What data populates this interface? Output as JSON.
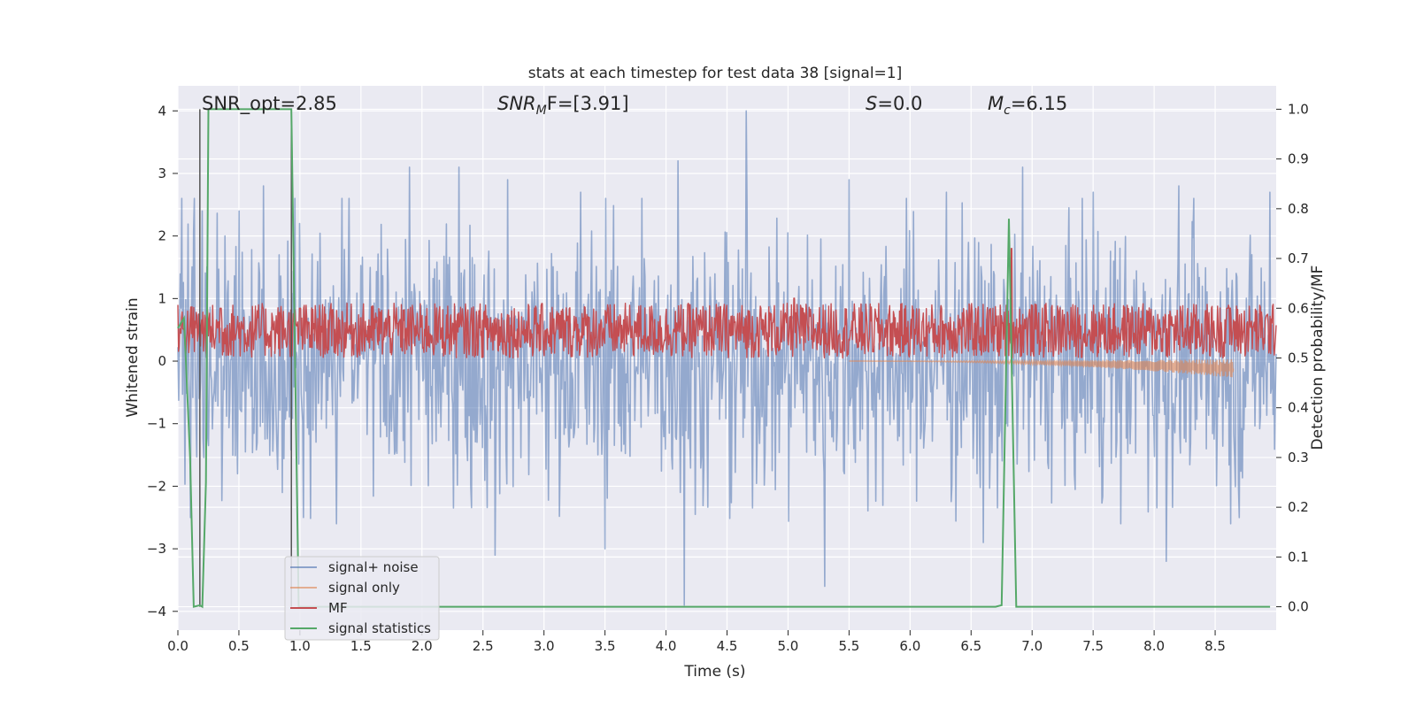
{
  "chart_data": {
    "type": "line",
    "title": "stats at each timestep for test data 38 [signal=1]",
    "xlabel": "Time (s)",
    "ylabel": "Whitened strain",
    "y2label": "Detection probability/MF",
    "xlim": [
      0.0,
      9.0
    ],
    "ylim": [
      -4.3,
      4.4
    ],
    "y2lim": [
      -0.047,
      1.047
    ],
    "xticks": [
      "0.0",
      "0.5",
      "1.0",
      "1.5",
      "2.0",
      "2.5",
      "3.0",
      "3.5",
      "4.0",
      "4.5",
      "5.0",
      "5.5",
      "6.0",
      "6.5",
      "7.0",
      "7.5",
      "8.0",
      "8.5"
    ],
    "yticks": [
      "4",
      "3",
      "2",
      "1",
      "0",
      "−1",
      "−2",
      "−3",
      "−4"
    ],
    "y2ticks": [
      "1.0",
      "0.9",
      "0.8",
      "0.7",
      "0.6",
      "0.5",
      "0.4",
      "0.3",
      "0.2",
      "0.1",
      "0.0"
    ],
    "grid": true,
    "legend_placement": "lower-left",
    "annotations": {
      "snr_opt": "SNR_opt=2.85",
      "snr_mf_main": "SNR",
      "snr_mf_sub": "M",
      "snr_mf_rest": "F=[3.91]",
      "s_italic": "S",
      "s_rest": "=0.0",
      "mc_main": "M",
      "mc_sub": "c",
      "mc_rest": "=6.15"
    },
    "series": [
      {
        "name": "signal+ noise",
        "color": "#4c72b0",
        "description_range": "noise approx within -3.9..4.0",
        "spikes": [
          [
            0.2,
            2.4
          ],
          [
            0.5,
            2.4
          ],
          [
            0.7,
            2.8
          ],
          [
            1.0,
            2.2
          ],
          [
            1.4,
            2.6
          ],
          [
            1.9,
            3.1
          ],
          [
            2.3,
            3.1
          ],
          [
            2.7,
            2.9
          ],
          [
            3.3,
            2.7
          ],
          [
            3.8,
            2.6
          ],
          [
            4.1,
            3.2
          ],
          [
            4.66,
            4.0
          ],
          [
            5.5,
            2.9
          ],
          [
            6.3,
            2.7
          ],
          [
            6.92,
            3.1
          ],
          [
            7.5,
            2.7
          ],
          [
            8.2,
            2.8
          ],
          [
            8.95,
            2.7
          ],
          [
            0.1,
            -2.5
          ],
          [
            0.5,
            -2.7
          ],
          [
            1.3,
            -2.6
          ],
          [
            2.6,
            -3.1
          ],
          [
            3.5,
            -3.0
          ],
          [
            4.15,
            -3.9
          ],
          [
            5.3,
            -3.6
          ],
          [
            5.5,
            -3.0
          ],
          [
            6.6,
            -2.9
          ],
          [
            8.1,
            -3.2
          ],
          [
            8.7,
            -2.5
          ]
        ]
      },
      {
        "name": "signal only",
        "color": "#dd8452",
        "chirp": {
          "t_start": 5.5,
          "t_end": 8.65,
          "amp_max": 0.15
        }
      },
      {
        "name": "MF",
        "color": "#c44e52",
        "band_y2": [
          0.5,
          0.61
        ],
        "peaks": [
          [
            0.35,
            0.6
          ],
          [
            1.0,
            0.6
          ],
          [
            5.05,
            0.62
          ],
          [
            6.83,
            0.72
          ],
          [
            8.6,
            0.6
          ]
        ]
      },
      {
        "name": "signal statistics",
        "color": "#55a868",
        "points": [
          [
            0.0,
            0.56
          ],
          [
            0.05,
            0.58
          ],
          [
            0.1,
            0.3
          ],
          [
            0.13,
            0.0
          ],
          [
            0.18,
            0.003
          ],
          [
            0.2,
            0.0
          ],
          [
            0.23,
            0.25
          ],
          [
            0.25,
            1.0
          ],
          [
            0.93,
            1.0
          ],
          [
            0.99,
            0.0
          ],
          [
            1.5,
            0.0
          ],
          [
            2.5,
            0.0
          ],
          [
            3.5,
            0.0
          ],
          [
            4.5,
            0.0
          ],
          [
            5.5,
            0.0
          ],
          [
            6.5,
            0.0
          ],
          [
            6.7,
            0.0
          ],
          [
            6.75,
            0.003
          ],
          [
            6.81,
            0.78
          ],
          [
            6.87,
            0.0
          ],
          [
            7.5,
            0.0
          ],
          [
            8.5,
            0.0
          ],
          [
            8.95,
            0.0
          ]
        ]
      }
    ],
    "vlines": [
      0.18,
      0.93
    ]
  }
}
